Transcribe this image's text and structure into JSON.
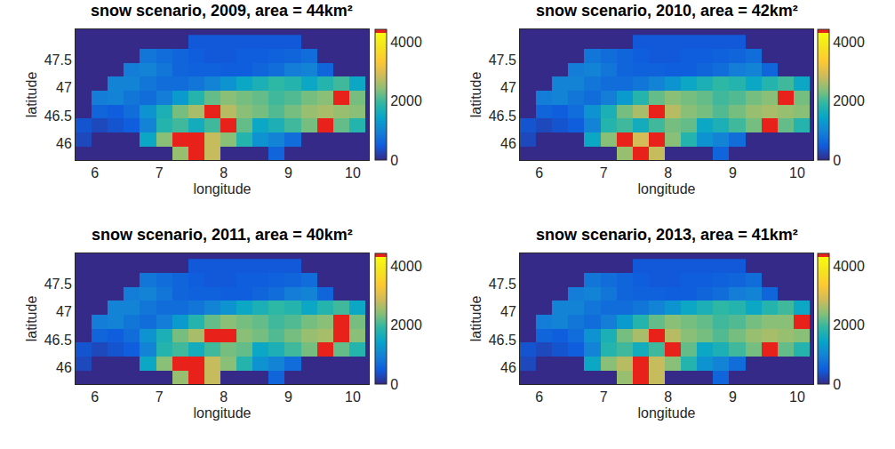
{
  "chart_data": [
    {
      "type": "heatmap",
      "title": "snow scenario, 2009, area = 44km²",
      "x_label": "longitude",
      "y_label": "latitude",
      "x": [
        5.825,
        6.075,
        6.325,
        6.575,
        6.825,
        7.075,
        7.325,
        7.575,
        7.825,
        8.075,
        8.325,
        8.575,
        8.825,
        9.075,
        9.325,
        9.575,
        9.825,
        10.075
      ],
      "y": [
        45.825,
        46.075,
        46.325,
        46.575,
        46.825,
        47.075,
        47.325,
        47.575,
        47.825
      ],
      "z": [
        [
          0,
          0,
          0,
          0,
          0,
          0,
          2500,
          4350,
          2800,
          0,
          0,
          0,
          600,
          0,
          0,
          0,
          0,
          0
        ],
        [
          300,
          0,
          0,
          0,
          1500,
          2400,
          4350,
          4350,
          2800,
          2400,
          1800,
          1200,
          1000,
          700,
          0,
          0,
          0,
          0
        ],
        [
          400,
          300,
          400,
          500,
          1000,
          1800,
          2000,
          1600,
          2000,
          4350,
          2200,
          1500,
          1700,
          2000,
          2300,
          4350,
          2200,
          1800
        ],
        [
          0,
          600,
          500,
          700,
          1200,
          1700,
          2300,
          2600,
          4350,
          2700,
          2400,
          2300,
          2100,
          2300,
          2500,
          2600,
          2500,
          2400
        ],
        [
          0,
          900,
          1000,
          800,
          700,
          900,
          1300,
          1800,
          2200,
          2400,
          2300,
          2200,
          2000,
          2100,
          2300,
          2400,
          4350,
          2300
        ],
        [
          0,
          0,
          1000,
          1000,
          800,
          700,
          700,
          800,
          1000,
          1200,
          1500,
          1700,
          1900,
          1800,
          1500,
          1800,
          2000,
          1500
        ],
        [
          0,
          0,
          0,
          900,
          1000,
          800,
          600,
          550,
          550,
          500,
          500,
          600,
          700,
          900,
          1000,
          600,
          0,
          0
        ],
        [
          0,
          0,
          0,
          0,
          800,
          700,
          600,
          500,
          450,
          450,
          500,
          500,
          550,
          600,
          700,
          0,
          0,
          0
        ],
        [
          0,
          0,
          0,
          0,
          0,
          0,
          0,
          450,
          450,
          450,
          450,
          450,
          450,
          450,
          0,
          0,
          0,
          0
        ]
      ],
      "xlim": [
        5.7,
        10.25
      ],
      "ylim": [
        45.7,
        48.05
      ],
      "xticks": [
        6,
        7,
        8,
        9,
        10
      ],
      "yticks": [
        46,
        46.5,
        47,
        47.5
      ],
      "colorbar_range": [
        0,
        4420
      ],
      "colorbar_ticks": [
        0,
        2000,
        4000
      ]
    },
    {
      "type": "heatmap",
      "title": "snow scenario, 2010, area = 42km²",
      "x_label": "longitude",
      "y_label": "latitude",
      "x": [
        5.825,
        6.075,
        6.325,
        6.575,
        6.825,
        7.075,
        7.325,
        7.575,
        7.825,
        8.075,
        8.325,
        8.575,
        8.825,
        9.075,
        9.325,
        9.575,
        9.825,
        10.075
      ],
      "y": [
        45.825,
        46.075,
        46.325,
        46.575,
        46.825,
        47.075,
        47.325,
        47.575,
        47.825
      ],
      "z": [
        [
          0,
          0,
          0,
          0,
          0,
          0,
          2500,
          4350,
          2800,
          0,
          0,
          0,
          600,
          0,
          0,
          0,
          0,
          0
        ],
        [
          300,
          0,
          0,
          0,
          1500,
          2400,
          4350,
          2900,
          4350,
          2400,
          1800,
          1200,
          1000,
          700,
          0,
          0,
          0,
          0
        ],
        [
          400,
          300,
          400,
          500,
          1000,
          1800,
          2000,
          1600,
          2000,
          2300,
          2200,
          1500,
          1700,
          2000,
          2300,
          4350,
          2200,
          1800
        ],
        [
          0,
          600,
          500,
          700,
          1200,
          1700,
          2300,
          2600,
          4350,
          2700,
          2400,
          2300,
          2100,
          2300,
          2500,
          2600,
          2500,
          2400
        ],
        [
          0,
          900,
          1000,
          800,
          700,
          900,
          1300,
          1800,
          2200,
          2400,
          2300,
          2200,
          2000,
          2100,
          2300,
          2400,
          4350,
          2300
        ],
        [
          0,
          0,
          1000,
          1000,
          800,
          700,
          700,
          800,
          1000,
          1200,
          1500,
          1700,
          1900,
          1800,
          1500,
          1800,
          2000,
          1500
        ],
        [
          0,
          0,
          0,
          900,
          1000,
          800,
          600,
          550,
          550,
          500,
          500,
          600,
          700,
          900,
          1000,
          600,
          0,
          0
        ],
        [
          0,
          0,
          0,
          0,
          800,
          700,
          600,
          500,
          450,
          450,
          500,
          500,
          550,
          600,
          700,
          0,
          0,
          0
        ],
        [
          0,
          0,
          0,
          0,
          0,
          0,
          0,
          450,
          450,
          450,
          450,
          450,
          450,
          450,
          0,
          0,
          0,
          0
        ]
      ],
      "xlim": [
        5.7,
        10.25
      ],
      "ylim": [
        45.7,
        48.05
      ],
      "xticks": [
        6,
        7,
        8,
        9,
        10
      ],
      "yticks": [
        46,
        46.5,
        47,
        47.5
      ],
      "colorbar_range": [
        0,
        4420
      ],
      "colorbar_ticks": [
        0,
        2000,
        4000
      ]
    },
    {
      "type": "heatmap",
      "title": "snow scenario, 2011, area = 40km²",
      "x_label": "longitude",
      "y_label": "latitude",
      "x": [
        5.825,
        6.075,
        6.325,
        6.575,
        6.825,
        7.075,
        7.325,
        7.575,
        7.825,
        8.075,
        8.325,
        8.575,
        8.825,
        9.075,
        9.325,
        9.575,
        9.825,
        10.075
      ],
      "y": [
        45.825,
        46.075,
        46.325,
        46.575,
        46.825,
        47.075,
        47.325,
        47.575,
        47.825
      ],
      "z": [
        [
          0,
          0,
          0,
          0,
          0,
          0,
          2500,
          4350,
          2800,
          0,
          0,
          0,
          600,
          0,
          0,
          0,
          0,
          0
        ],
        [
          300,
          0,
          0,
          0,
          1500,
          2400,
          4350,
          4350,
          2800,
          2400,
          1800,
          1200,
          1000,
          700,
          0,
          0,
          0,
          0
        ],
        [
          400,
          300,
          400,
          500,
          1000,
          1800,
          2000,
          1600,
          2000,
          2300,
          2200,
          1500,
          1700,
          2000,
          2300,
          4350,
          2200,
          1800
        ],
        [
          0,
          600,
          500,
          700,
          1200,
          1700,
          2300,
          2600,
          4350,
          4350,
          2400,
          2300,
          2100,
          2300,
          2500,
          2600,
          4350,
          2400
        ],
        [
          0,
          900,
          1000,
          800,
          700,
          900,
          1300,
          1800,
          2200,
          2400,
          2300,
          2200,
          2000,
          2100,
          2300,
          2400,
          4350,
          2300
        ],
        [
          0,
          0,
          1000,
          1000,
          800,
          700,
          700,
          800,
          1000,
          1200,
          1500,
          1700,
          1900,
          1800,
          1500,
          1800,
          2000,
          1500
        ],
        [
          0,
          0,
          0,
          900,
          1000,
          800,
          600,
          550,
          550,
          500,
          500,
          600,
          700,
          900,
          1000,
          600,
          0,
          0
        ],
        [
          0,
          0,
          0,
          0,
          800,
          700,
          600,
          500,
          450,
          450,
          500,
          500,
          550,
          600,
          700,
          0,
          0,
          0
        ],
        [
          0,
          0,
          0,
          0,
          0,
          0,
          0,
          450,
          450,
          450,
          450,
          450,
          450,
          450,
          0,
          0,
          0,
          0
        ]
      ],
      "xlim": [
        5.7,
        10.25
      ],
      "ylim": [
        45.7,
        48.05
      ],
      "xticks": [
        6,
        7,
        8,
        9,
        10
      ],
      "yticks": [
        46,
        46.5,
        47,
        47.5
      ],
      "colorbar_range": [
        0,
        4420
      ],
      "colorbar_ticks": [
        0,
        2000,
        4000
      ]
    },
    {
      "type": "heatmap",
      "title": "snow scenario, 2013, area = 41km²",
      "x_label": "longitude",
      "y_label": "latitude",
      "x": [
        5.825,
        6.075,
        6.325,
        6.575,
        6.825,
        7.075,
        7.325,
        7.575,
        7.825,
        8.075,
        8.325,
        8.575,
        8.825,
        9.075,
        9.325,
        9.575,
        9.825,
        10.075
      ],
      "y": [
        45.825,
        46.075,
        46.325,
        46.575,
        46.825,
        47.075,
        47.325,
        47.575,
        47.825
      ],
      "z": [
        [
          0,
          0,
          0,
          0,
          0,
          0,
          2500,
          4350,
          2800,
          0,
          0,
          0,
          600,
          0,
          0,
          0,
          0,
          0
        ],
        [
          300,
          0,
          0,
          0,
          1500,
          2400,
          2700,
          4350,
          2800,
          2400,
          1800,
          1200,
          1000,
          700,
          0,
          0,
          0,
          0
        ],
        [
          400,
          300,
          400,
          500,
          1000,
          1800,
          2000,
          1600,
          2000,
          4350,
          2200,
          1500,
          1700,
          2000,
          2300,
          4350,
          2200,
          1800
        ],
        [
          0,
          600,
          500,
          700,
          1200,
          1700,
          2300,
          2600,
          4350,
          2700,
          2400,
          2300,
          2100,
          2300,
          2500,
          2600,
          2500,
          2400
        ],
        [
          0,
          900,
          1000,
          800,
          700,
          900,
          1300,
          1800,
          2200,
          2400,
          2300,
          2200,
          2000,
          2100,
          2300,
          2400,
          2400,
          4350
        ],
        [
          0,
          0,
          1000,
          1000,
          800,
          700,
          700,
          800,
          1000,
          1200,
          1500,
          1700,
          1900,
          1800,
          1500,
          1800,
          2000,
          1500
        ],
        [
          0,
          0,
          0,
          900,
          1000,
          800,
          600,
          550,
          550,
          500,
          500,
          600,
          700,
          900,
          1000,
          600,
          0,
          0
        ],
        [
          0,
          0,
          0,
          0,
          800,
          700,
          600,
          500,
          450,
          450,
          500,
          500,
          550,
          600,
          700,
          0,
          0,
          0
        ],
        [
          0,
          0,
          0,
          0,
          0,
          0,
          0,
          450,
          450,
          450,
          450,
          450,
          450,
          450,
          0,
          0,
          0,
          0
        ]
      ],
      "xlim": [
        5.7,
        10.25
      ],
      "ylim": [
        45.7,
        48.05
      ],
      "xticks": [
        6,
        7,
        8,
        9,
        10
      ],
      "yticks": [
        46,
        46.5,
        47,
        47.5
      ],
      "colorbar_range": [
        0,
        4420
      ],
      "colorbar_ticks": [
        0,
        2000,
        4000
      ]
    }
  ]
}
